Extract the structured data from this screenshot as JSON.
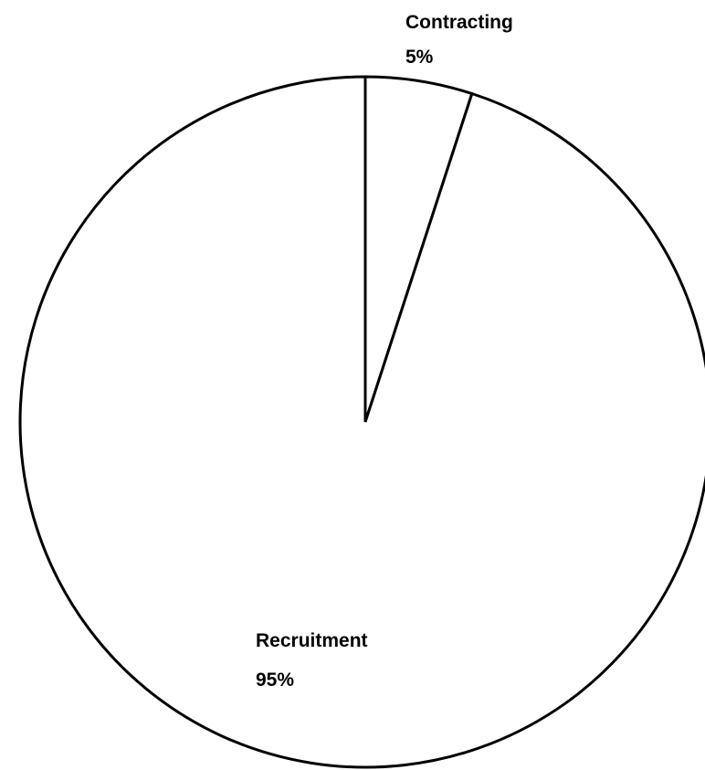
{
  "chart_data": {
    "type": "pie",
    "start_angle": "12 o'clock",
    "direction": "clockwise",
    "slices": [
      {
        "label": "Contracting",
        "value": 5,
        "value_label": "5%",
        "fill": "#ffffff"
      },
      {
        "label": "Recruitment",
        "value": 95,
        "value_label": "95%",
        "fill": "#ffffff"
      }
    ],
    "legend": false,
    "stroke_color": "#000000"
  }
}
